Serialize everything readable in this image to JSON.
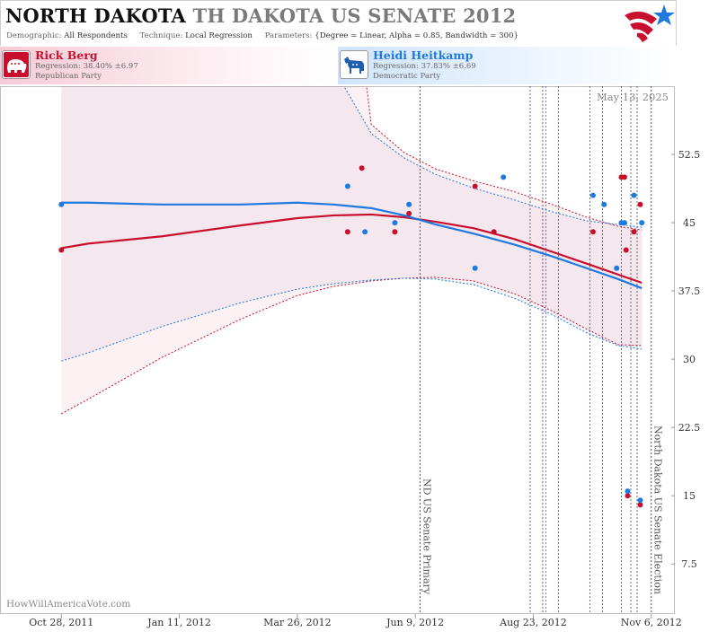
{
  "header": {
    "title_state": "NORTH DAKOTA",
    "title_race": "TH DAKOTA US SENATE 2012",
    "demographic_label": "Demographic:",
    "demographic_value": "All Respondents",
    "technique_label": "Technique:",
    "technique_value": "Local Regression",
    "parameters_label": "Parameters:",
    "parameters_value": "{Degree = Linear, Alpha = 0.85, Bandwidth = 300}"
  },
  "candidates": [
    {
      "name": "Rick Berg",
      "regression": "Regression: 38.40% ±6.97",
      "party": "Republican Party",
      "icon": "elephant-icon",
      "color": "#c8102e"
    },
    {
      "name": "Heidi Heitkamp",
      "regression": "Regression: 37.83% ±6.69",
      "party": "Democratic Party",
      "icon": "donkey-icon",
      "color": "#1f7ae0"
    }
  ],
  "watermark": "HowWillAmericaVote.com",
  "chart_data": {
    "type": "scatter",
    "date_label": "May 13, 2025",
    "x_ticks": [
      "2011-10-28",
      "2012-01-11",
      "2012-03-26",
      "2012-06-09",
      "2012-08-23",
      "2012-11-06"
    ],
    "x_tick_labels": [
      "Oct 28, 2011",
      "Jan 11, 2012",
      "Mar 26, 2012",
      "Jun 9, 2012",
      "Aug 23, 2012",
      "Nov 6, 2012"
    ],
    "x_range": [
      "2011-09-19",
      "2012-11-21"
    ],
    "y_ticks": [
      7.5,
      15,
      22.5,
      30,
      37.5,
      45,
      52.5
    ],
    "y_tick_labels": [
      "7.5",
      "15",
      "22.5",
      "30",
      "37.5",
      "45",
      "52.5"
    ],
    "ylim": [
      2,
      60
    ],
    "grid": false,
    "annotations": [
      {
        "date": "2012-06-12",
        "label": "ND US Senate Primary",
        "color": "#555555"
      },
      {
        "date": "2012-11-06",
        "label": "North Dakota US Senate Election",
        "color": "#555555"
      }
    ],
    "event_lines": [
      {
        "date": "2012-08-21",
        "color": "#555555"
      },
      {
        "date": "2012-08-29",
        "color": "#c8102e"
      },
      {
        "date": "2012-08-31",
        "color": "#1f7ae0"
      },
      {
        "date": "2012-09-08",
        "color": "#555555"
      },
      {
        "date": "2012-09-28",
        "color": "#555555"
      },
      {
        "date": "2012-10-06",
        "color": "#555555"
      },
      {
        "date": "2012-10-18",
        "color": "#555555"
      },
      {
        "date": "2012-10-24",
        "color": "#555555"
      },
      {
        "date": "2012-10-28",
        "color": "#555555"
      }
    ],
    "series": [
      {
        "name": "Rick Berg",
        "color": "#c8102e",
        "points": [
          {
            "date": "2011-10-28",
            "value": 42
          },
          {
            "date": "2012-04-27",
            "value": 44
          },
          {
            "date": "2012-05-06",
            "value": 51
          },
          {
            "date": "2012-05-27",
            "value": 44
          },
          {
            "date": "2012-06-05",
            "value": 46
          },
          {
            "date": "2012-07-17",
            "value": 49
          },
          {
            "date": "2012-07-29",
            "value": 44
          },
          {
            "date": "2012-09-30",
            "value": 44
          },
          {
            "date": "2012-10-18",
            "value": 50
          },
          {
            "date": "2012-10-20",
            "value": 50
          },
          {
            "date": "2012-10-21",
            "value": 42
          },
          {
            "date": "2012-10-22",
            "value": 15
          },
          {
            "date": "2012-10-26",
            "value": 44
          },
          {
            "date": "2012-10-30",
            "value": 14
          },
          {
            "date": "2012-10-30",
            "value": 47
          }
        ],
        "trend": {
          "dates": [
            "2011-10-28",
            "2011-11-14",
            "2011-12-31",
            "2012-02-19",
            "2012-03-26",
            "2012-04-18",
            "2012-05-12",
            "2012-06-02",
            "2012-06-22",
            "2012-07-16",
            "2012-08-11",
            "2012-09-04",
            "2012-09-26",
            "2012-10-16",
            "2012-10-31"
          ],
          "values": [
            42.2,
            42.7,
            43.5,
            44.7,
            45.5,
            45.8,
            45.9,
            45.6,
            45.1,
            44.4,
            43.2,
            41.8,
            40.5,
            39.3,
            38.4
          ],
          "upper": [
            null,
            null,
            null,
            null,
            null,
            null,
            55.8,
            52.7,
            50.9,
            49.6,
            48.4,
            47.0,
            45.6,
            44.6,
            44.2
          ],
          "lower": [
            24.0,
            25.6,
            30.2,
            34.4,
            37.0,
            38.0,
            38.6,
            38.9,
            39.0,
            38.6,
            37.2,
            35.3,
            33.3,
            31.6,
            31.5
          ]
        }
      },
      {
        "name": "Heidi Heitkamp",
        "color": "#1f7ae0",
        "points": [
          {
            "date": "2011-10-28",
            "value": 47
          },
          {
            "date": "2012-04-27",
            "value": 49
          },
          {
            "date": "2012-05-08",
            "value": 44
          },
          {
            "date": "2012-05-27",
            "value": 45
          },
          {
            "date": "2012-06-05",
            "value": 47
          },
          {
            "date": "2012-07-17",
            "value": 40
          },
          {
            "date": "2012-08-04",
            "value": 50
          },
          {
            "date": "2012-09-30",
            "value": 48
          },
          {
            "date": "2012-10-07",
            "value": 47
          },
          {
            "date": "2012-10-15",
            "value": 40
          },
          {
            "date": "2012-10-18",
            "value": 45
          },
          {
            "date": "2012-10-20",
            "value": 45
          },
          {
            "date": "2012-10-22",
            "value": 15.5
          },
          {
            "date": "2012-10-26",
            "value": 48
          },
          {
            "date": "2012-10-30",
            "value": 14.5
          },
          {
            "date": "2012-10-31",
            "value": 45
          }
        ],
        "trend": {
          "dates": [
            "2011-10-28",
            "2011-11-14",
            "2011-12-31",
            "2012-02-19",
            "2012-03-26",
            "2012-04-18",
            "2012-05-12",
            "2012-06-02",
            "2012-06-22",
            "2012-07-16",
            "2012-08-11",
            "2012-09-04",
            "2012-09-26",
            "2012-10-16",
            "2012-10-31"
          ],
          "values": [
            47.2,
            47.2,
            47.0,
            47.0,
            47.2,
            47.0,
            46.6,
            45.8,
            44.8,
            43.8,
            42.6,
            41.3,
            40.0,
            38.8,
            37.8
          ],
          "upper": [
            null,
            null,
            null,
            null,
            null,
            62.0,
            54.8,
            52.1,
            50.3,
            48.8,
            47.5,
            46.2,
            45.2,
            44.8,
            44.5
          ],
          "lower": [
            29.8,
            30.7,
            33.6,
            36.2,
            37.7,
            38.3,
            38.7,
            38.9,
            38.8,
            38.2,
            36.7,
            34.9,
            32.9,
            31.5,
            31.1
          ]
        }
      }
    ]
  }
}
